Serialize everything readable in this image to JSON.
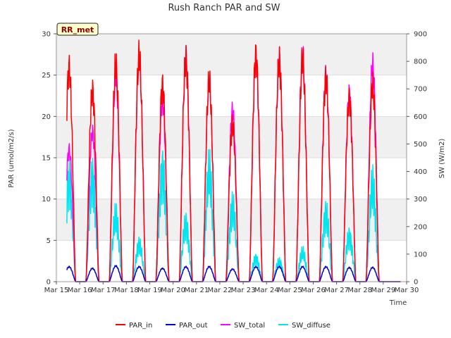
{
  "chart_data": {
    "type": "line",
    "title": "Rush Ranch PAR and SW",
    "badge": "RR_met",
    "xlabel": "Time",
    "ylabel_left": "PAR (umol/m2/s)",
    "ylabel_right": "SW (W/m2)",
    "ylim_left": [
      0,
      30
    ],
    "ylim_right": [
      0,
      900
    ],
    "yticks_left": [
      "0",
      "5",
      "10",
      "15",
      "20",
      "25",
      "30"
    ],
    "yticks_right": [
      "0",
      "100",
      "200",
      "300",
      "400",
      "500",
      "600",
      "700",
      "800",
      "900"
    ],
    "x_range_days": [
      15,
      30
    ],
    "x_ticks": [
      "Mar 15",
      "Mar 16",
      "Mar 17",
      "Mar 18",
      "Mar 19",
      "Mar 20",
      "Mar 21",
      "Mar 22",
      "Mar 23",
      "Mar 24",
      "Mar 25",
      "Mar 26",
      "Mar 27",
      "Mar 28",
      "Mar 29",
      "Mar 30"
    ],
    "grid": true,
    "legend_placement": "bottom-center",
    "series_meta": [
      {
        "name": "PAR_in",
        "color": "#ff0000",
        "axis": "left"
      },
      {
        "name": "PAR_out",
        "color": "#0000cc",
        "axis": "left"
      },
      {
        "name": "SW_total",
        "color": "#ff00ff",
        "axis": "right"
      },
      {
        "name": "SW_diffuse",
        "color": "#00e5ee",
        "axis": "right"
      }
    ],
    "daily_peaks": {
      "days": [
        15.9,
        16.9,
        17.9,
        18.9,
        19.9,
        20.9,
        21.9,
        22.9,
        23.9,
        24.9,
        25.9,
        26.9,
        27.9,
        28.9
      ],
      "PAR_in": [
        28.0,
        25.0,
        28.2,
        29.5,
        25.8,
        29.0,
        26.0,
        20.5,
        29.7,
        28.7,
        28.8,
        26.6,
        24.0,
        25.5
      ],
      "PAR_out": [
        1.9,
        1.7,
        2.0,
        1.9,
        1.7,
        1.9,
        1.9,
        1.6,
        1.9,
        1.9,
        1.9,
        1.9,
        1.8,
        1.8
      ],
      "SW_total": [
        510,
        580,
        790,
        860,
        700,
        870,
        770,
        660,
        860,
        860,
        870,
        800,
        730,
        835
      ],
      "SW_diffuse": [
        470,
        480,
        290,
        165,
        520,
        260,
        490,
        340,
        110,
        90,
        130,
        310,
        210,
        430
      ]
    }
  }
}
